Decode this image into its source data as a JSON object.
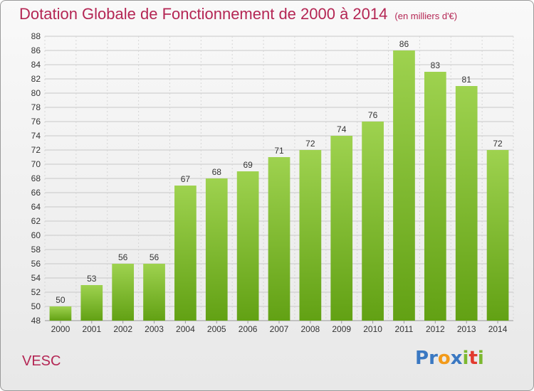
{
  "header": {
    "title": "Dotation Globale de Fonctionnement de 2000 à 2014",
    "subtitle": "(en milliers d'€)"
  },
  "commune": "VESC",
  "logo": {
    "text": "Proxiti",
    "letters": [
      {
        "ch": "P",
        "color": "#3a78c2"
      },
      {
        "ch": "r",
        "color": "#3a78c2"
      },
      {
        "ch": "o",
        "color": "#f29a1a"
      },
      {
        "ch": "x",
        "color": "#3a78c2"
      },
      {
        "ch": "i",
        "color": "#7cb82f"
      },
      {
        "ch": "t",
        "color": "#e23a2e"
      },
      {
        "ch": "i",
        "color": "#7cb82f"
      }
    ]
  },
  "chart_data": {
    "type": "bar",
    "title": "Dotation Globale de Fonctionnement de 2000 à 2014",
    "subtitle": "(en milliers d'€)",
    "categories": [
      "2000",
      "2001",
      "2002",
      "2003",
      "2004",
      "2005",
      "2006",
      "2007",
      "2008",
      "2009",
      "2010",
      "2011",
      "2012",
      "2013",
      "2014"
    ],
    "values": [
      50,
      53,
      56,
      56,
      67,
      68,
      69,
      71,
      72,
      74,
      76,
      86,
      83,
      81,
      72
    ],
    "ylim": [
      48,
      88
    ],
    "ytick_step": 2,
    "grid": true,
    "data_labels": true,
    "colors": {
      "bar_top": "#9ed24f",
      "bar_bottom": "#62a114",
      "grid": "#c8c8c8",
      "label": "#333333",
      "axis_text": "#333333"
    }
  }
}
